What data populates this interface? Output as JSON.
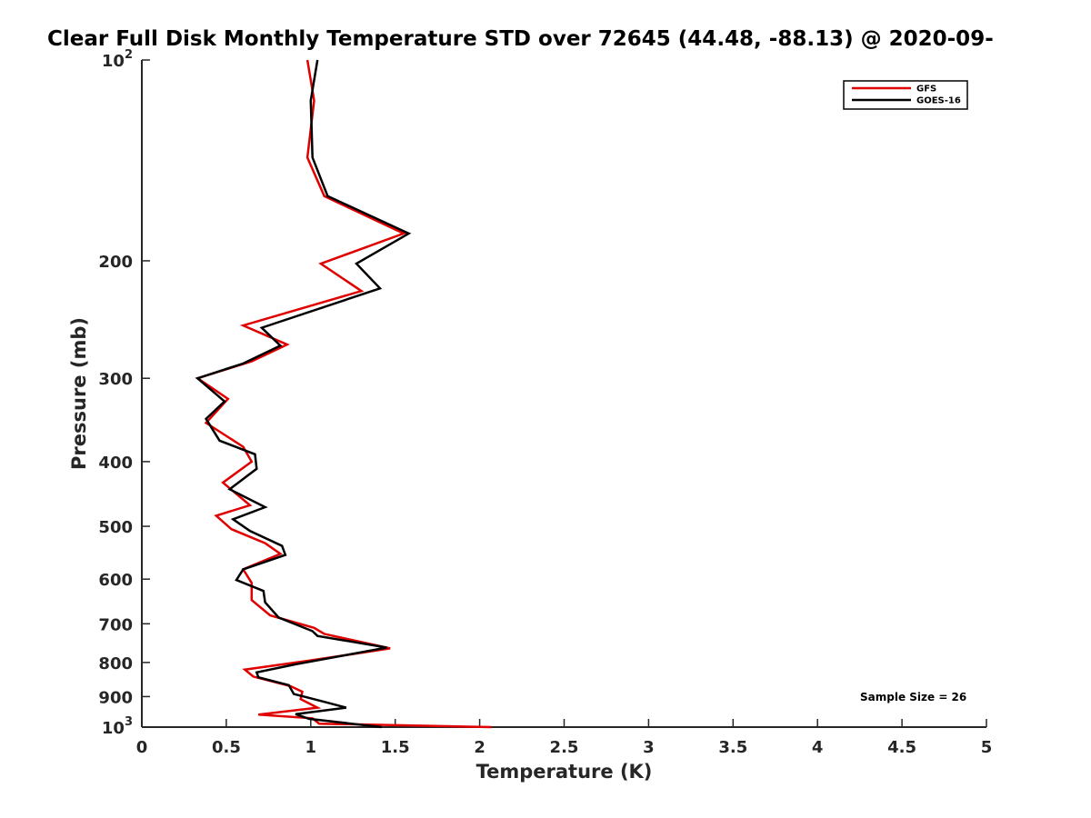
{
  "chart_data": {
    "type": "line",
    "title": "Clear Full Disk Monthly Temperature STD over 72645 (44.48, -88.13) @ 2020-09-",
    "xlabel": "Temperature (K)",
    "ylabel": "Pressure (mb)",
    "xlim": [
      0,
      5
    ],
    "ylim": [
      100,
      1000
    ],
    "y_scale": "log",
    "y_reversed": true,
    "grid": false,
    "legend_position": "top-right",
    "x_ticks": [
      "0",
      "0.5",
      "1",
      "1.5",
      "2",
      "2.5",
      "3",
      "3.5",
      "4",
      "4.5",
      "5"
    ],
    "y_ticks": [
      {
        "value": 100,
        "base": "10",
        "exp": "2"
      },
      {
        "value": 200,
        "label": "200"
      },
      {
        "value": 300,
        "label": "300"
      },
      {
        "value": 400,
        "label": "400"
      },
      {
        "value": 500,
        "label": "500"
      },
      {
        "value": 600,
        "label": "600"
      },
      {
        "value": 700,
        "label": "700"
      },
      {
        "value": 800,
        "label": "800"
      },
      {
        "value": 900,
        "label": "900"
      },
      {
        "value": 1000,
        "base": "10",
        "exp": "3"
      }
    ],
    "annotation": "Sample Size = 26",
    "series": [
      {
        "name": "GFS",
        "color": "#e00000",
        "points": [
          [
            0.98,
            100
          ],
          [
            1.02,
            115
          ],
          [
            0.98,
            140
          ],
          [
            1.08,
            160
          ],
          [
            1.55,
            182
          ],
          [
            1.06,
            202
          ],
          [
            1.3,
            222
          ],
          [
            0.6,
            250
          ],
          [
            0.86,
            267
          ],
          [
            0.65,
            283
          ],
          [
            0.33,
            300
          ],
          [
            0.51,
            322
          ],
          [
            0.38,
            350
          ],
          [
            0.6,
            380
          ],
          [
            0.65,
            400
          ],
          [
            0.48,
            430
          ],
          [
            0.64,
            465
          ],
          [
            0.44,
            482
          ],
          [
            0.53,
            505
          ],
          [
            0.73,
            530
          ],
          [
            0.82,
            550
          ],
          [
            0.6,
            580
          ],
          [
            0.65,
            608
          ],
          [
            0.65,
            645
          ],
          [
            0.76,
            680
          ],
          [
            1.02,
            710
          ],
          [
            1.08,
            725
          ],
          [
            1.47,
            762
          ],
          [
            0.99,
            795
          ],
          [
            0.61,
            820
          ],
          [
            0.66,
            840
          ],
          [
            0.88,
            868
          ],
          [
            0.95,
            885
          ],
          [
            0.94,
            908
          ],
          [
            1.04,
            935
          ],
          [
            0.69,
            958
          ],
          [
            1.01,
            970
          ],
          [
            1.05,
            988
          ],
          [
            2.07,
            1000
          ]
        ]
      },
      {
        "name": "GOES-16",
        "color": "#000000",
        "points": [
          [
            1.04,
            100
          ],
          [
            1.0,
            115
          ],
          [
            1.01,
            140
          ],
          [
            1.1,
            160
          ],
          [
            1.58,
            182
          ],
          [
            1.27,
            202
          ],
          [
            1.41,
            220
          ],
          [
            0.71,
            252
          ],
          [
            0.82,
            268
          ],
          [
            0.6,
            285
          ],
          [
            0.33,
            300
          ],
          [
            0.49,
            325
          ],
          [
            0.38,
            345
          ],
          [
            0.46,
            372
          ],
          [
            0.67,
            390
          ],
          [
            0.68,
            410
          ],
          [
            0.52,
            440
          ],
          [
            0.73,
            468
          ],
          [
            0.54,
            488
          ],
          [
            0.64,
            508
          ],
          [
            0.83,
            535
          ],
          [
            0.85,
            552
          ],
          [
            0.6,
            580
          ],
          [
            0.56,
            602
          ],
          [
            0.72,
            625
          ],
          [
            0.73,
            650
          ],
          [
            0.81,
            685
          ],
          [
            1.01,
            718
          ],
          [
            1.04,
            730
          ],
          [
            1.45,
            760
          ],
          [
            0.91,
            805
          ],
          [
            0.68,
            828
          ],
          [
            0.69,
            842
          ],
          [
            0.87,
            865
          ],
          [
            0.9,
            892
          ],
          [
            1.07,
            915
          ],
          [
            1.21,
            935
          ],
          [
            0.91,
            956
          ],
          [
            0.99,
            972
          ],
          [
            1.42,
            1000
          ]
        ]
      }
    ]
  }
}
